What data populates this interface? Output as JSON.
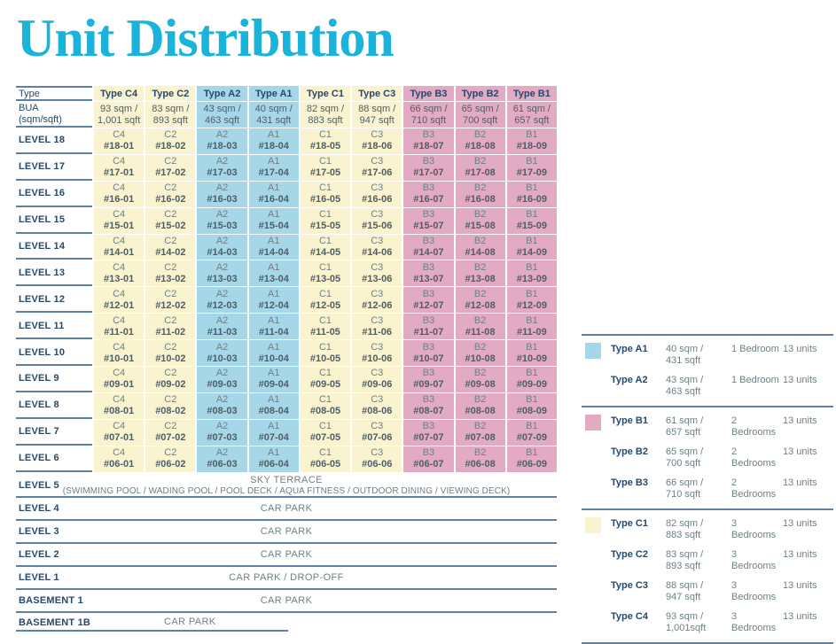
{
  "title": "Unit Distribution",
  "colors": {
    "title_cyan": "#1ab3dc",
    "type_a_blue": "#a5d7e8",
    "type_b_pink": "#e2aac3",
    "type_c_yellow": "#faf3cf",
    "rule_slate_blue": "#5d81a6",
    "heading_navy": "#27496b",
    "cell_text_gray": "#6e8185",
    "cell_number_gray": "#4d5f66"
  },
  "table": {
    "corner_label": "Type",
    "bua_label_line1": "BUA",
    "bua_label_line2": "(sqm/sqft)",
    "columns": [
      {
        "label": "Type C4",
        "bua1": "93 sqm /",
        "bua2": "1,001 sqft",
        "color": "yellow"
      },
      {
        "label": "Type C2",
        "bua1": "83 sqm /",
        "bua2": "893 sqft",
        "color": "yellow"
      },
      {
        "label": "Type A2",
        "bua1": "43 sqm /",
        "bua2": "463 sqft",
        "color": "blue"
      },
      {
        "label": "Type A1",
        "bua1": "40 sqm /",
        "bua2": "431 sqft",
        "color": "blue"
      },
      {
        "label": "Type C1",
        "bua1": "82 sqm /",
        "bua2": "883 sqft",
        "color": "yellow"
      },
      {
        "label": "Type C3",
        "bua1": "88 sqm /",
        "bua2": "947 sqft",
        "color": "yellow"
      },
      {
        "label": "Type B3",
        "bua1": "66 sqm /",
        "bua2": "710 sqft",
        "color": "pink"
      },
      {
        "label": "Type B2",
        "bua1": "65 sqm /",
        "bua2": "700 sqft",
        "color": "pink"
      },
      {
        "label": "Type B1",
        "bua1": "61 sqm /",
        "bua2": "657 sqft",
        "color": "pink"
      }
    ],
    "levels": [
      {
        "label": "LEVEL 18",
        "units": [
          {
            "t": "C4",
            "n": "#18-01",
            "c": "yellow"
          },
          {
            "t": "C2",
            "n": "#18-02",
            "c": "yellow"
          },
          {
            "t": "A2",
            "n": "#18-03",
            "c": "blue"
          },
          {
            "t": "A1",
            "n": "#18-04",
            "c": "blue"
          },
          {
            "t": "C1",
            "n": "#18-05",
            "c": "yellow"
          },
          {
            "t": "C3",
            "n": "#18-06",
            "c": "yellow"
          },
          {
            "t": "B3",
            "n": "#18-07",
            "c": "pink"
          },
          {
            "t": "B2",
            "n": "#18-08",
            "c": "pink"
          },
          {
            "t": "B1",
            "n": "#18-09",
            "c": "pink"
          }
        ]
      },
      {
        "label": "LEVEL 17",
        "units": [
          {
            "t": "C4",
            "n": "#17-01",
            "c": "yellow"
          },
          {
            "t": "C2",
            "n": "#17-02",
            "c": "yellow"
          },
          {
            "t": "A2",
            "n": "#17-03",
            "c": "blue"
          },
          {
            "t": "A1",
            "n": "#17-04",
            "c": "blue"
          },
          {
            "t": "C1",
            "n": "#17-05",
            "c": "yellow"
          },
          {
            "t": "C3",
            "n": "#17-06",
            "c": "yellow"
          },
          {
            "t": "B3",
            "n": "#17-07",
            "c": "pink"
          },
          {
            "t": "B2",
            "n": "#17-08",
            "c": "pink"
          },
          {
            "t": "B1",
            "n": "#17-09",
            "c": "pink"
          }
        ]
      },
      {
        "label": "LEVEL 16",
        "units": [
          {
            "t": "C4",
            "n": "#16-01",
            "c": "yellow"
          },
          {
            "t": "C2",
            "n": "#16-02",
            "c": "yellow"
          },
          {
            "t": "A2",
            "n": "#16-03",
            "c": "blue"
          },
          {
            "t": "A1",
            "n": "#16-04",
            "c": "blue"
          },
          {
            "t": "C1",
            "n": "#16-05",
            "c": "yellow"
          },
          {
            "t": "C3",
            "n": "#16-06",
            "c": "yellow"
          },
          {
            "t": "B3",
            "n": "#16-07",
            "c": "pink"
          },
          {
            "t": "B2",
            "n": "#16-08",
            "c": "pink"
          },
          {
            "t": "B1",
            "n": "#16-09",
            "c": "pink"
          }
        ]
      },
      {
        "label": "LEVEL 15",
        "units": [
          {
            "t": "C4",
            "n": "#15-01",
            "c": "yellow"
          },
          {
            "t": "C2",
            "n": "#15-02",
            "c": "yellow"
          },
          {
            "t": "A2",
            "n": "#15-03",
            "c": "blue"
          },
          {
            "t": "A1",
            "n": "#15-04",
            "c": "blue"
          },
          {
            "t": "C1",
            "n": "#15-05",
            "c": "yellow"
          },
          {
            "t": "C3",
            "n": "#15-06",
            "c": "yellow"
          },
          {
            "t": "B3",
            "n": "#15-07",
            "c": "pink"
          },
          {
            "t": "B2",
            "n": "#15-08",
            "c": "pink"
          },
          {
            "t": "B1",
            "n": "#15-09",
            "c": "pink"
          }
        ]
      },
      {
        "label": "LEVEL 14",
        "units": [
          {
            "t": "C4",
            "n": "#14-01",
            "c": "yellow"
          },
          {
            "t": "C2",
            "n": "#14-02",
            "c": "yellow"
          },
          {
            "t": "A2",
            "n": "#14-03",
            "c": "blue"
          },
          {
            "t": "A1",
            "n": "#14-04",
            "c": "blue"
          },
          {
            "t": "C1",
            "n": "#14-05",
            "c": "yellow"
          },
          {
            "t": "C3",
            "n": "#14-06",
            "c": "yellow"
          },
          {
            "t": "B3",
            "n": "#14-07",
            "c": "pink"
          },
          {
            "t": "B2",
            "n": "#14-08",
            "c": "pink"
          },
          {
            "t": "B1",
            "n": "#14-09",
            "c": "pink"
          }
        ]
      },
      {
        "label": "LEVEL 13",
        "units": [
          {
            "t": "C4",
            "n": "#13-01",
            "c": "yellow"
          },
          {
            "t": "C2",
            "n": "#13-02",
            "c": "yellow"
          },
          {
            "t": "A2",
            "n": "#13-03",
            "c": "blue"
          },
          {
            "t": "A1",
            "n": "#13-04",
            "c": "blue"
          },
          {
            "t": "C1",
            "n": "#13-05",
            "c": "yellow"
          },
          {
            "t": "C3",
            "n": "#13-06",
            "c": "yellow"
          },
          {
            "t": "B3",
            "n": "#13-07",
            "c": "pink"
          },
          {
            "t": "B2",
            "n": "#13-08",
            "c": "pink"
          },
          {
            "t": "B1",
            "n": "#13-09",
            "c": "pink"
          }
        ]
      },
      {
        "label": "LEVEL 12",
        "units": [
          {
            "t": "C4",
            "n": "#12-01",
            "c": "yellow"
          },
          {
            "t": "C2",
            "n": "#12-02",
            "c": "yellow"
          },
          {
            "t": "A2",
            "n": "#12-03",
            "c": "blue"
          },
          {
            "t": "A1",
            "n": "#12-04",
            "c": "blue"
          },
          {
            "t": "C1",
            "n": "#12-05",
            "c": "yellow"
          },
          {
            "t": "C3",
            "n": "#12-06",
            "c": "yellow"
          },
          {
            "t": "B3",
            "n": "#12-07",
            "c": "pink"
          },
          {
            "t": "B2",
            "n": "#12-08",
            "c": "pink"
          },
          {
            "t": "B1",
            "n": "#12-09",
            "c": "pink"
          }
        ]
      },
      {
        "label": "LEVEL 11",
        "units": [
          {
            "t": "C4",
            "n": "#11-01",
            "c": "yellow"
          },
          {
            "t": "C2",
            "n": "#11-02",
            "c": "yellow"
          },
          {
            "t": "A2",
            "n": "#11-03",
            "c": "blue"
          },
          {
            "t": "A1",
            "n": "#11-04",
            "c": "blue"
          },
          {
            "t": "C1",
            "n": "#11-05",
            "c": "yellow"
          },
          {
            "t": "C3",
            "n": "#11-06",
            "c": "yellow"
          },
          {
            "t": "B3",
            "n": "#11-07",
            "c": "pink"
          },
          {
            "t": "B2",
            "n": "#11-08",
            "c": "pink"
          },
          {
            "t": "B1",
            "n": "#11-09",
            "c": "pink"
          }
        ]
      },
      {
        "label": "LEVEL 10",
        "units": [
          {
            "t": "C4",
            "n": "#10-01",
            "c": "yellow"
          },
          {
            "t": "C2",
            "n": "#10-02",
            "c": "yellow"
          },
          {
            "t": "A2",
            "n": "#10-03",
            "c": "blue"
          },
          {
            "t": "A1",
            "n": "#10-04",
            "c": "blue"
          },
          {
            "t": "C1",
            "n": "#10-05",
            "c": "yellow"
          },
          {
            "t": "C3",
            "n": "#10-06",
            "c": "yellow"
          },
          {
            "t": "B3",
            "n": "#10-07",
            "c": "pink"
          },
          {
            "t": "B2",
            "n": "#10-08",
            "c": "pink"
          },
          {
            "t": "B1",
            "n": "#10-09",
            "c": "pink"
          }
        ]
      },
      {
        "label": "LEVEL 9",
        "units": [
          {
            "t": "C4",
            "n": "#09-01",
            "c": "yellow"
          },
          {
            "t": "C2",
            "n": "#09-02",
            "c": "yellow"
          },
          {
            "t": "A2",
            "n": "#09-03",
            "c": "blue"
          },
          {
            "t": "A1",
            "n": "#09-04",
            "c": "blue"
          },
          {
            "t": "C1",
            "n": "#09-05",
            "c": "yellow"
          },
          {
            "t": "C3",
            "n": "#09-06",
            "c": "yellow"
          },
          {
            "t": "B3",
            "n": "#09-07",
            "c": "pink"
          },
          {
            "t": "B2",
            "n": "#09-08",
            "c": "pink"
          },
          {
            "t": "B1",
            "n": "#09-09",
            "c": "pink"
          }
        ]
      },
      {
        "label": "LEVEL 8",
        "units": [
          {
            "t": "C4",
            "n": "#08-01",
            "c": "yellow"
          },
          {
            "t": "C2",
            "n": "#08-02",
            "c": "yellow"
          },
          {
            "t": "A2",
            "n": "#08-03",
            "c": "blue"
          },
          {
            "t": "A1",
            "n": "#08-04",
            "c": "blue"
          },
          {
            "t": "C1",
            "n": "#08-05",
            "c": "yellow"
          },
          {
            "t": "C3",
            "n": "#08-06",
            "c": "yellow"
          },
          {
            "t": "B3",
            "n": "#08-07",
            "c": "pink"
          },
          {
            "t": "B2",
            "n": "#08-08",
            "c": "pink"
          },
          {
            "t": "B1",
            "n": "#08-09",
            "c": "pink"
          }
        ]
      },
      {
        "label": "LEVEL 7",
        "units": [
          {
            "t": "C4",
            "n": "#07-01",
            "c": "yellow"
          },
          {
            "t": "C2",
            "n": "#07-02",
            "c": "yellow"
          },
          {
            "t": "A2",
            "n": "#07-03",
            "c": "blue"
          },
          {
            "t": "A1",
            "n": "#07-04",
            "c": "blue"
          },
          {
            "t": "C1",
            "n": "#07-05",
            "c": "yellow"
          },
          {
            "t": "C3",
            "n": "#07-06",
            "c": "yellow"
          },
          {
            "t": "B3",
            "n": "#07-07",
            "c": "pink"
          },
          {
            "t": "B2",
            "n": "#07-08",
            "c": "pink"
          },
          {
            "t": "B1",
            "n": "#07-09",
            "c": "pink"
          }
        ]
      },
      {
        "label": "LEVEL 6",
        "units": [
          {
            "t": "C4",
            "n": "#06-01",
            "c": "yellow"
          },
          {
            "t": "C2",
            "n": "#06-02",
            "c": "yellow"
          },
          {
            "t": "A2",
            "n": "#06-03",
            "c": "blue"
          },
          {
            "t": "A1",
            "n": "#06-04",
            "c": "blue"
          },
          {
            "t": "C1",
            "n": "#06-05",
            "c": "yellow"
          },
          {
            "t": "C3",
            "n": "#06-06",
            "c": "yellow"
          },
          {
            "t": "B3",
            "n": "#06-07",
            "c": "pink"
          },
          {
            "t": "B2",
            "n": "#06-08",
            "c": "pink"
          },
          {
            "t": "B1",
            "n": "#06-09",
            "c": "pink"
          }
        ]
      }
    ],
    "special_rows": [
      {
        "label": "LEVEL 5",
        "line1": "SKY TERRACE",
        "line2": "(SWIMMING POOL / WADING POOL / POOL DECK / AQUA FITNESS / OUTDOOR DINING / VIEWING DECK)"
      },
      {
        "label": "LEVEL 4",
        "line1": "CAR PARK"
      },
      {
        "label": "LEVEL 3",
        "line1": "CAR PARK"
      },
      {
        "label": "LEVEL 2",
        "line1": "CAR PARK"
      },
      {
        "label": "LEVEL 1",
        "line1": "CAR PARK / DROP-OFF"
      },
      {
        "label": "BASEMENT 1",
        "line1": "CAR PARK"
      },
      {
        "label": "BASEMENT 1B",
        "line1": "CAR PARK",
        "align": "left"
      }
    ]
  },
  "legend": {
    "groups": [
      {
        "rows": [
          {
            "swatch": "blue",
            "type": "Type A1",
            "size1": "40 sqm /",
            "size2": "431 sqft",
            "bedrooms": "1 Bedroom",
            "units": "13 units"
          },
          {
            "type": "Type A2",
            "size1": "43 sqm /",
            "size2": "463 sqft",
            "bedrooms": "1 Bedroom",
            "units": "13 units"
          }
        ]
      },
      {
        "rows": [
          {
            "swatch": "pink",
            "type": "Type B1",
            "size1": "61 sqm /",
            "size2": "657 sqft",
            "bedrooms": "2 Bedrooms",
            "units": "13 units"
          },
          {
            "type": "Type B2",
            "size1": "65 sqm /",
            "size2": "700 sqft",
            "bedrooms": "2 Bedrooms",
            "units": "13 units"
          },
          {
            "type": "Type B3",
            "size1": "66 sqm /",
            "size2": "710 sqft",
            "bedrooms": "2 Bedrooms",
            "units": "13 units"
          }
        ]
      },
      {
        "rows": [
          {
            "swatch": "yellow",
            "type": "Type C1",
            "size1": "82 sqm /",
            "size2": "883 sqft",
            "bedrooms": "3 Bedrooms",
            "units": "13 units"
          },
          {
            "type": "Type C2",
            "size1": "83 sqm /",
            "size2": "893 sqft",
            "bedrooms": "3 Bedrooms",
            "units": "13 units"
          },
          {
            "type": "Type C3",
            "size1": "88 sqm /",
            "size2": "947 sqft",
            "bedrooms": "3 Bedrooms",
            "units": "13 units"
          },
          {
            "type": "Type C4",
            "size1": "93 sqm /",
            "size2": "1,001sqft",
            "bedrooms": "3 Bedrooms",
            "units": "13 units"
          }
        ]
      }
    ]
  }
}
